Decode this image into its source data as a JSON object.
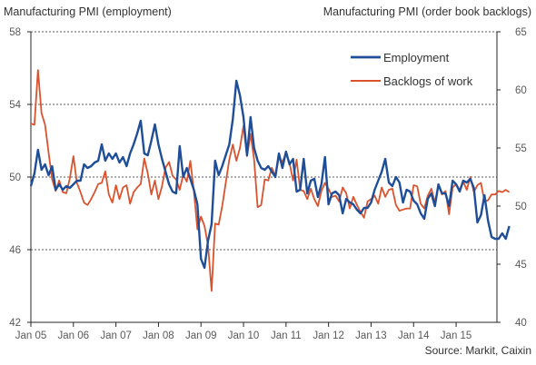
{
  "chart_data": {
    "type": "line",
    "left_axis_title": "Manufacturing PMI (employment)",
    "right_axis_title": "Manufacturing PMI (order book backlogs)",
    "source": "Source: Markit, Caixin",
    "x_ticks": [
      "Jan 05",
      "Jan 06",
      "Jan 07",
      "Jan 08",
      "Jan 09",
      "Jan 10",
      "Jan 11",
      "Jan 12",
      "Jan 13",
      "Jan 14",
      "Jan 15"
    ],
    "y_left": {
      "min": 42,
      "max": 58,
      "ticks": [
        42,
        46,
        50,
        54,
        58
      ]
    },
    "y_right": {
      "min": 40,
      "max": 65,
      "ticks": [
        40,
        45,
        50,
        55,
        60,
        65
      ]
    },
    "gridlines": [
      46,
      50,
      54,
      58
    ],
    "legend_position": "top-right",
    "series": [
      {
        "name": "Employment",
        "axis": "left",
        "color": "#1f4e99",
        "x_start": "2005-01",
        "values": [
          49.5,
          50.2,
          51.5,
          50.4,
          50.7,
          50.1,
          50.6,
          49.3,
          49.6,
          49.3,
          49.5,
          49.4,
          49.6,
          49.8,
          49.8,
          50.7,
          50.5,
          50.6,
          50.8,
          50.9,
          51.8,
          50.9,
          51.3,
          51.0,
          51.3,
          50.8,
          51.1,
          50.6,
          51.3,
          51.8,
          52.4,
          53.1,
          51.3,
          51.2,
          52.0,
          52.9,
          51.8,
          51.0,
          50.3,
          49.6,
          49.2,
          49.1,
          51.7,
          50.0,
          50.5,
          49.9,
          49.3,
          48.5,
          45.5,
          45.0,
          46.5,
          47.4,
          50.9,
          50.1,
          50.6,
          51.2,
          51.8,
          53.2,
          55.3,
          54.5,
          53.3,
          51.2,
          53.3,
          51.6,
          50.9,
          50.5,
          50.4,
          50.6,
          50.3,
          50.0,
          51.3,
          50.5,
          51.4,
          50.7,
          51.0,
          49.2,
          49.3,
          51.0,
          49.1,
          49.8,
          49.9,
          48.9,
          49.6,
          51.1,
          48.5,
          49.1,
          49.2,
          49.0,
          48.0,
          48.8,
          48.6,
          48.5,
          48.2,
          48.0,
          48.3,
          48.3,
          48.6,
          49.3,
          49.8,
          50.3,
          51.0,
          49.7,
          49.5,
          50.0,
          49.7,
          48.6,
          49.3,
          49.2,
          48.7,
          48.5,
          48.0,
          47.7,
          48.8,
          49.1,
          48.4,
          49.6,
          49.1,
          49.1,
          48.4,
          49.8,
          49.6,
          49.2,
          49.8,
          49.7,
          49.9,
          49.4,
          47.5,
          47.9,
          49.0,
          47.6,
          46.7,
          46.6,
          46.6,
          46.9,
          46.6,
          47.3
        ]
      },
      {
        "name": "Backlogs of work",
        "axis": "right",
        "color": "#d9532e",
        "x_start": "2005-01",
        "values": [
          57.1,
          57.0,
          61.7,
          58.0,
          57.0,
          54.6,
          52.3,
          51.3,
          52.2,
          51.2,
          51.1,
          52.4,
          54.3,
          52.0,
          51.2,
          50.3,
          50.1,
          50.6,
          51.2,
          51.9,
          52.0,
          53.0,
          51.0,
          50.3,
          51.8,
          50.6,
          51.6,
          51.8,
          50.2,
          51.2,
          51.6,
          51.9,
          54.1,
          52.8,
          51.0,
          52.2,
          50.6,
          51.7,
          53.3,
          53.8,
          52.6,
          52.3,
          51.4,
          52.7,
          52.1,
          53.9,
          51.3,
          48.0,
          49.1,
          48.3,
          46.6,
          42.7,
          48.5,
          48.4,
          50.0,
          52.0,
          54.0,
          55.3,
          53.9,
          55.0,
          56.9,
          54.3,
          56.2,
          54.0,
          49.9,
          50.1,
          52.3,
          52.2,
          53.3,
          52.6,
          54.2,
          53.8,
          54.6,
          53.7,
          52.2,
          54.0,
          51.4,
          51.3,
          50.6,
          51.5,
          50.6,
          50.0,
          51.3,
          52.0,
          51.5,
          50.8,
          50.9,
          50.4,
          51.6,
          51.1,
          49.8,
          50.8,
          50.1,
          49.5,
          49.0,
          50.4,
          50.6,
          50.9,
          50.2,
          51.6,
          50.8,
          51.4,
          51.5,
          50.1,
          49.6,
          49.7,
          49.8,
          49.8,
          51.8,
          51.7,
          50.2,
          49.8,
          50.9,
          51.5,
          50.3,
          51.8,
          51.0,
          51.3,
          49.3,
          51.6,
          51.9,
          51.4,
          52.1,
          51.4,
          52.5,
          51.2,
          51.8,
          52.0,
          50.4,
          50.5,
          51.0,
          51.0,
          51.3,
          51.2,
          51.4,
          51.2
        ]
      }
    ]
  }
}
